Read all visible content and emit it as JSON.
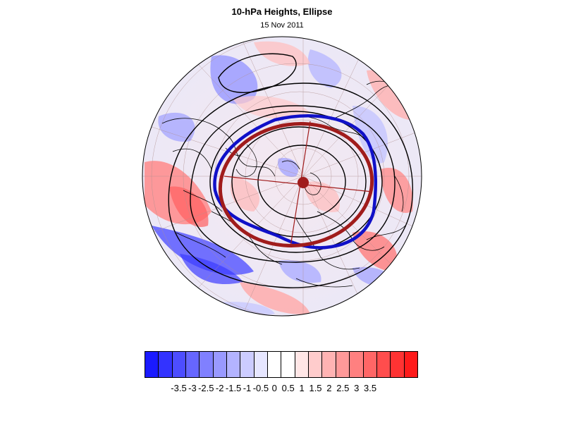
{
  "header": {
    "title": "10-hPa Heights, Ellipse",
    "subtitle": "15 Nov 2011"
  },
  "colorbar": {
    "colors": [
      "#1a1aff",
      "#3333ff",
      "#4d4dff",
      "#6666ff",
      "#8080ff",
      "#9999ff",
      "#b3b3ff",
      "#ccccff",
      "#e6e6ff",
      "#ffffff",
      "#ffffff",
      "#ffe6e6",
      "#ffcccc",
      "#ffb3b3",
      "#ff9999",
      "#ff8080",
      "#ff6666",
      "#ff4d4d",
      "#ff3333",
      "#ff1a1a"
    ],
    "labels": [
      "-3.5",
      "-3",
      "-2.5",
      "-2",
      "-1.5",
      "-1",
      "-0.5",
      "0",
      "0.5",
      "1",
      "1.5",
      "2",
      "2.5",
      "3",
      "3.5"
    ]
  },
  "map": {
    "projection": "polar-stereographic-north",
    "overlays": {
      "fitted_ellipse_color": "#a01c1c",
      "vortex_contour_color": "#1010c8",
      "contour_color": "#000000"
    }
  }
}
